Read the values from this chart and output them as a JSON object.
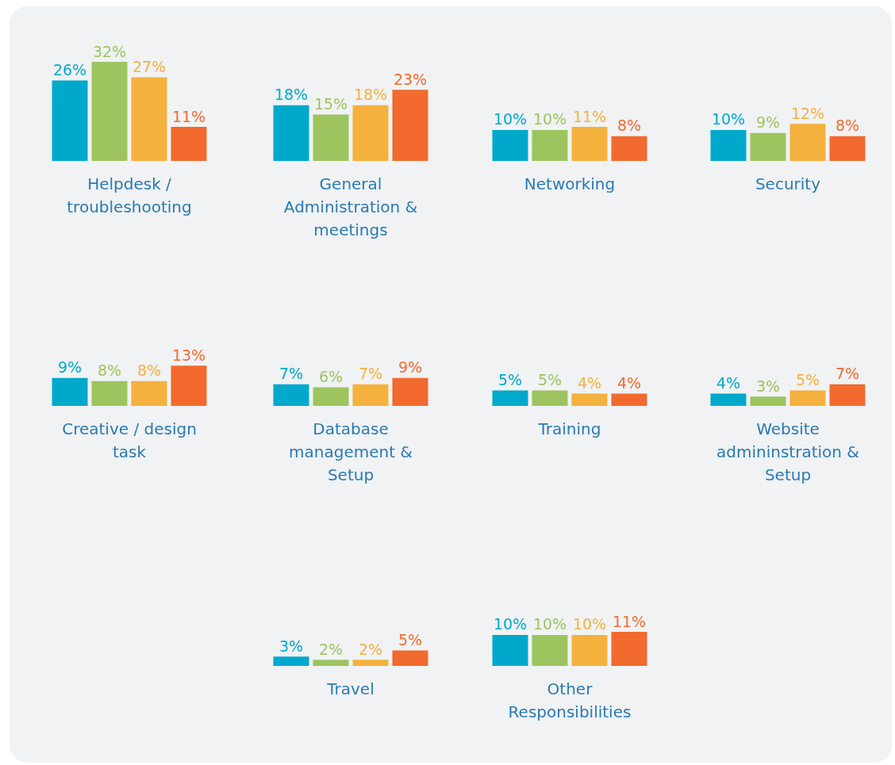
{
  "chart_data": [
    {
      "type": "bar",
      "xlabel": "Helpdesk / troubleshooting",
      "categories": [
        null,
        null,
        null,
        null
      ],
      "values": [
        26,
        32,
        27,
        11
      ],
      "colors": [
        "#00a9cc",
        "#9dc45f",
        "#f4b13d",
        "#f26a2e"
      ],
      "value_labels": [
        "26%",
        "32%",
        "27%",
        "11%"
      ]
    },
    {
      "type": "bar",
      "xlabel": "General Administration & meetings",
      "categories": [
        null,
        null,
        null,
        null
      ],
      "values": [
        18,
        15,
        18,
        23
      ],
      "colors": [
        "#00a9cc",
        "#9dc45f",
        "#f4b13d",
        "#f26a2e"
      ],
      "value_labels": [
        "18%",
        "15%",
        "18%",
        "23%"
      ]
    },
    {
      "type": "bar",
      "xlabel": "Networking",
      "categories": [
        null,
        null,
        null,
        null
      ],
      "values": [
        10,
        10,
        11,
        8
      ],
      "colors": [
        "#00a9cc",
        "#9dc45f",
        "#f4b13d",
        "#f26a2e"
      ],
      "value_labels": [
        "10%",
        "10%",
        "11%",
        "8%"
      ]
    },
    {
      "type": "bar",
      "xlabel": "Security",
      "categories": [
        null,
        null,
        null,
        null
      ],
      "values": [
        10,
        9,
        12,
        8
      ],
      "colors": [
        "#00a9cc",
        "#9dc45f",
        "#f4b13d",
        "#f26a2e"
      ],
      "value_labels": [
        "10%",
        "9%",
        "12%",
        "8%"
      ]
    },
    {
      "type": "bar",
      "xlabel": "Creative / design task",
      "categories": [
        null,
        null,
        null,
        null
      ],
      "values": [
        9,
        8,
        8,
        13
      ],
      "colors": [
        "#00a9cc",
        "#9dc45f",
        "#f4b13d",
        "#f26a2e"
      ],
      "value_labels": [
        "9%",
        "8%",
        "8%",
        "13%"
      ]
    },
    {
      "type": "bar",
      "xlabel": "Database management & Setup",
      "categories": [
        null,
        null,
        null,
        null
      ],
      "values": [
        7,
        6,
        7,
        9
      ],
      "colors": [
        "#00a9cc",
        "#9dc45f",
        "#f4b13d",
        "#f26a2e"
      ],
      "value_labels": [
        "7%",
        "6%",
        "7%",
        "9%"
      ]
    },
    {
      "type": "bar",
      "xlabel": "Training",
      "categories": [
        null,
        null,
        null,
        null
      ],
      "values": [
        5,
        5,
        4,
        4
      ],
      "colors": [
        "#00a9cc",
        "#9dc45f",
        "#f4b13d",
        "#f26a2e"
      ],
      "value_labels": [
        "5%",
        "5%",
        "4%",
        "4%"
      ]
    },
    {
      "type": "bar",
      "xlabel": "Website admininstration & Setup",
      "categories": [
        null,
        null,
        null,
        null
      ],
      "values": [
        4,
        3,
        5,
        7
      ],
      "colors": [
        "#00a9cc",
        "#9dc45f",
        "#f4b13d",
        "#f26a2e"
      ],
      "value_labels": [
        "4%",
        "3%",
        "5%",
        "7%"
      ]
    },
    {
      "type": "bar",
      "xlabel": "Travel",
      "categories": [
        null,
        null,
        null,
        null
      ],
      "values": [
        3,
        2,
        2,
        5
      ],
      "colors": [
        "#00a9cc",
        "#9dc45f",
        "#f4b13d",
        "#f26a2e"
      ],
      "value_labels": [
        "3%",
        "2%",
        "2%",
        "5%"
      ]
    },
    {
      "type": "bar",
      "xlabel": "Other Responsibilities",
      "categories": [
        null,
        null,
        null,
        null
      ],
      "values": [
        10,
        10,
        10,
        11
      ],
      "colors": [
        "#00a9cc",
        "#9dc45f",
        "#f4b13d",
        "#f26a2e"
      ],
      "value_labels": [
        "10%",
        "10%",
        "10%",
        "11%"
      ]
    }
  ]
}
